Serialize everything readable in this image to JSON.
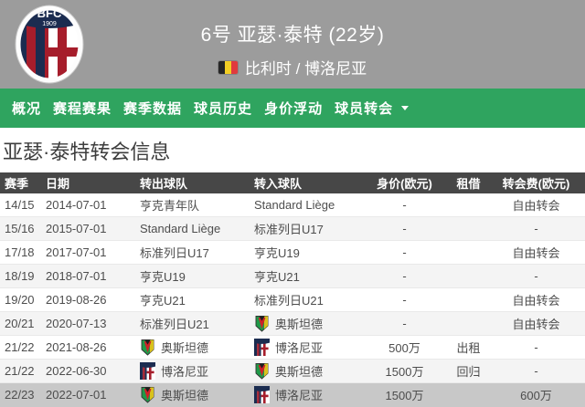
{
  "header": {
    "title": "6号 亚瑟·泰特 (22岁)",
    "nationality_club": "比利时 / 博洛尼亚",
    "crest": {
      "abbr": "BFC",
      "year": "1909"
    }
  },
  "nav": {
    "items": [
      {
        "id": "overview",
        "label": "概况"
      },
      {
        "id": "fixtures",
        "label": "赛程赛果"
      },
      {
        "id": "season-stats",
        "label": "赛季数据"
      },
      {
        "id": "player-history",
        "label": "球员历史"
      },
      {
        "id": "market-value",
        "label": "身价浮动"
      },
      {
        "id": "transfers",
        "label": "球员转会",
        "dropdown": true
      }
    ]
  },
  "page": {
    "title": "亚瑟·泰特转会信息"
  },
  "table": {
    "columns": [
      "赛季",
      "日期",
      "转出球队",
      "转入球队",
      "身价(欧元)",
      "租借",
      "转会费(欧元)"
    ],
    "rows": [
      {
        "season": "14/15",
        "date": "2014-07-01",
        "from": {
          "name": "亨克青年队",
          "logo": null
        },
        "to": {
          "name": "Standard Liège",
          "logo": null
        },
        "value": "-",
        "loan": "",
        "fee": "自由转会",
        "highlight": false
      },
      {
        "season": "15/16",
        "date": "2015-07-01",
        "from": {
          "name": "Standard Liège",
          "logo": null
        },
        "to": {
          "name": "标准列日U17",
          "logo": null
        },
        "value": "-",
        "loan": "",
        "fee": "-",
        "highlight": false
      },
      {
        "season": "17/18",
        "date": "2017-07-01",
        "from": {
          "name": "标准列日U17",
          "logo": null
        },
        "to": {
          "name": "亨克U19",
          "logo": null
        },
        "value": "-",
        "loan": "",
        "fee": "自由转会",
        "highlight": false
      },
      {
        "season": "18/19",
        "date": "2018-07-01",
        "from": {
          "name": "亨克U19",
          "logo": null
        },
        "to": {
          "name": "亨克U21",
          "logo": null
        },
        "value": "-",
        "loan": "",
        "fee": "-",
        "highlight": false
      },
      {
        "season": "19/20",
        "date": "2019-08-26",
        "from": {
          "name": "亨克U21",
          "logo": null
        },
        "to": {
          "name": "标准列日U21",
          "logo": null
        },
        "value": "-",
        "loan": "",
        "fee": "自由转会",
        "highlight": false
      },
      {
        "season": "20/21",
        "date": "2020-07-13",
        "from": {
          "name": "标准列日U21",
          "logo": null
        },
        "to": {
          "name": "奥斯坦德",
          "logo": "oostende"
        },
        "value": "-",
        "loan": "",
        "fee": "自由转会",
        "highlight": false
      },
      {
        "season": "21/22",
        "date": "2021-08-26",
        "from": {
          "name": "奥斯坦德",
          "logo": "oostende"
        },
        "to": {
          "name": "博洛尼亚",
          "logo": "bologna"
        },
        "value": "500万",
        "loan": "出租",
        "fee": "-",
        "highlight": false
      },
      {
        "season": "21/22",
        "date": "2022-06-30",
        "from": {
          "name": "博洛尼亚",
          "logo": "bologna"
        },
        "to": {
          "name": "奥斯坦德",
          "logo": "oostende"
        },
        "value": "1500万",
        "loan": "回归",
        "fee": "-",
        "highlight": false
      },
      {
        "season": "22/23",
        "date": "2022-07-01",
        "from": {
          "name": "奥斯坦德",
          "logo": "oostende"
        },
        "to": {
          "name": "博洛尼亚",
          "logo": "bologna"
        },
        "value": "1500万",
        "loan": "",
        "fee": "600万",
        "highlight": true
      }
    ]
  },
  "colors": {
    "nav_green": "#2fa45f",
    "header_gray": "#9c9c9c",
    "table_header_bg": "#474747",
    "row_alt_bg": "#f4f4f4",
    "row_highlight_bg": "#c8c8c8",
    "bologna_navy": "#1b2c50",
    "bologna_red": "#a61d2b"
  }
}
